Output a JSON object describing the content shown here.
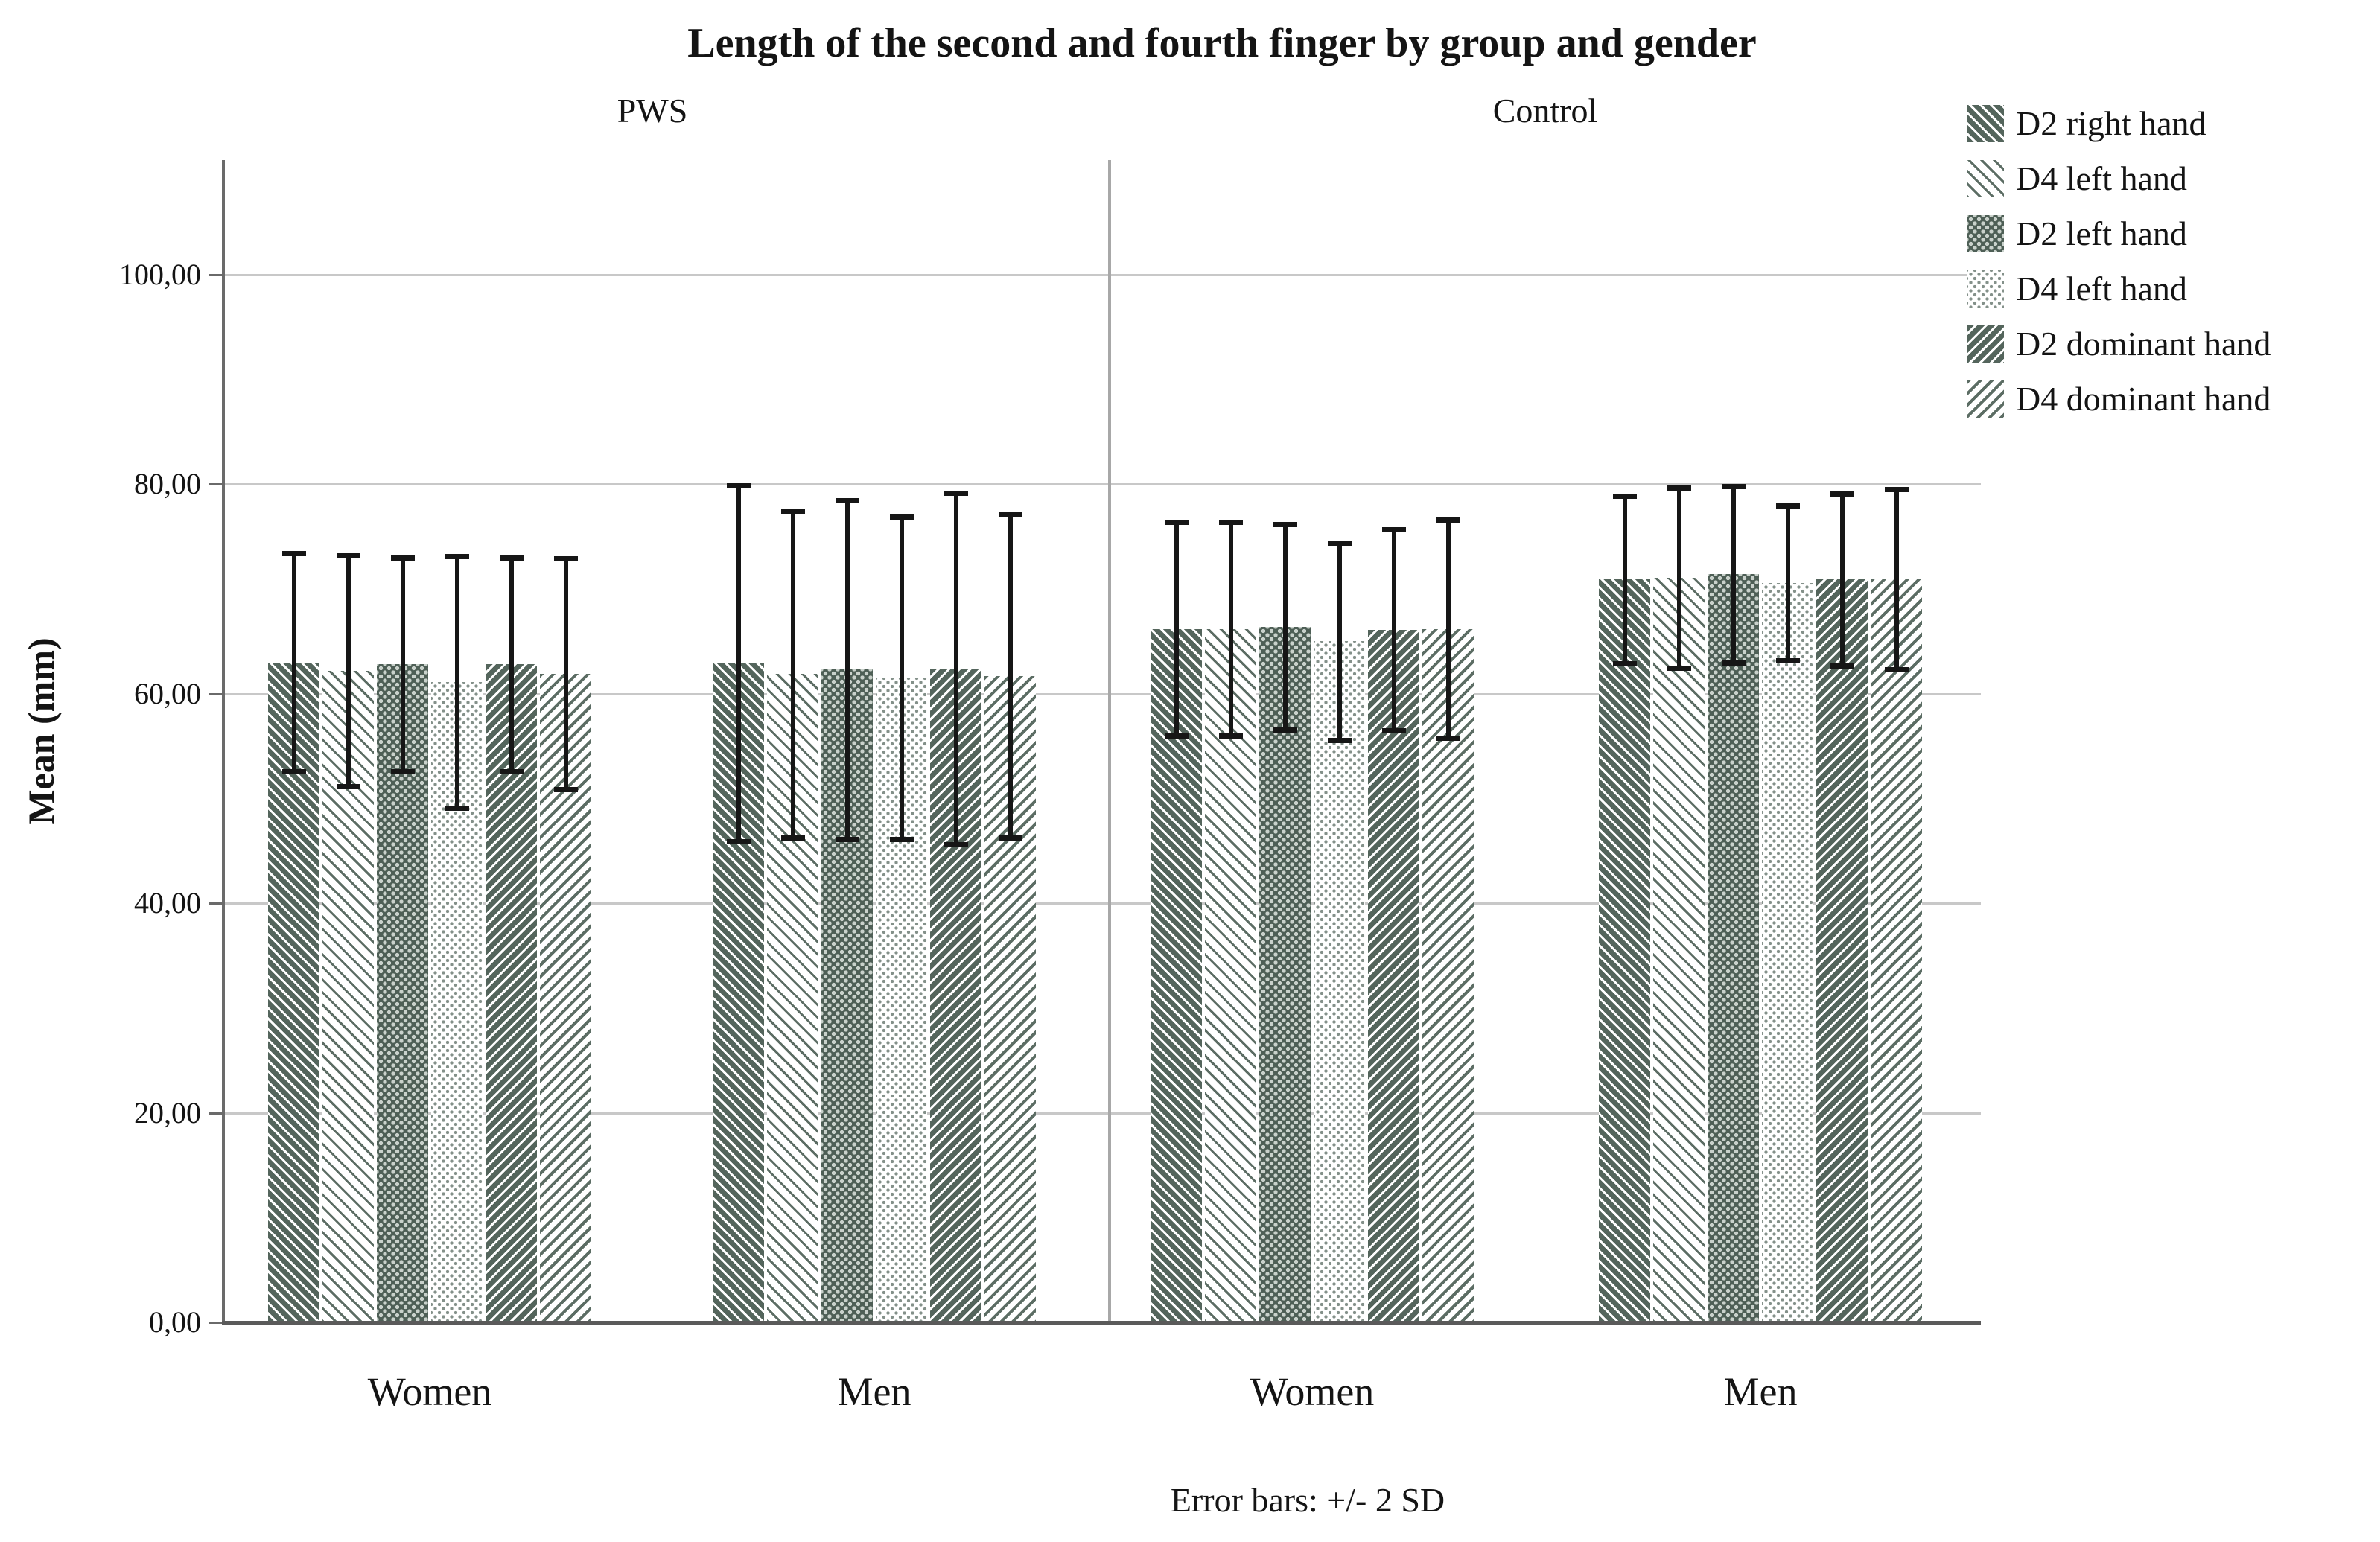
{
  "chart_data": {
    "type": "bar",
    "title": "Length of the second and fourth finger by group and gender",
    "panel_labels": [
      "PWS",
      "Control"
    ],
    "ylabel": "Mean (mm)",
    "xlabel": "",
    "ylim": [
      0,
      111
    ],
    "grid": "horizontal",
    "legend_position": "top-right",
    "yticks": [
      {
        "label": "0,00",
        "value": 0
      },
      {
        "label": "20,00",
        "value": 20
      },
      {
        "label": "40,00",
        "value": 40
      },
      {
        "label": "60,00",
        "value": 60
      },
      {
        "label": "80,00",
        "value": 80
      },
      {
        "label": "100,00",
        "value": 100
      }
    ],
    "series": [
      {
        "name": "D2 right hand",
        "pattern": "dense-backslash-hatch"
      },
      {
        "name": "D4 left hand",
        "pattern": "thin-backslash-hatch"
      },
      {
        "name": "D2 left hand",
        "pattern": "dense-dot-checker"
      },
      {
        "name": "D4 left hand",
        "pattern": "light-dots"
      },
      {
        "name": "D2 dominant hand",
        "pattern": "dense-forwardslash-hatch"
      },
      {
        "name": "D4 dominant hand",
        "pattern": "thin-forwardslash-hatch"
      }
    ],
    "groups": [
      {
        "panel": "PWS",
        "label": "Women",
        "means": [
          63.0,
          62.2,
          62.8,
          61.1,
          62.8,
          61.9
        ],
        "sd": [
          5.2,
          5.5,
          5.1,
          6.0,
          5.1,
          5.5
        ]
      },
      {
        "panel": "PWS",
        "label": "Men",
        "means": [
          62.9,
          61.9,
          62.3,
          61.5,
          62.4,
          61.7
        ],
        "sd": [
          8.5,
          7.8,
          8.1,
          7.7,
          8.4,
          7.7
        ]
      },
      {
        "panel": "Control",
        "label": "Women",
        "means": [
          66.2,
          66.2,
          66.4,
          65.0,
          66.1,
          66.2
        ],
        "sd": [
          5.1,
          5.1,
          4.9,
          4.7,
          4.8,
          5.2
        ]
      },
      {
        "panel": "Control",
        "label": "Men",
        "means": [
          70.9,
          71.1,
          71.4,
          70.6,
          70.9,
          70.9
        ],
        "sd": [
          4.0,
          4.3,
          4.2,
          3.7,
          4.1,
          4.3
        ]
      }
    ],
    "error_bars": {
      "definition": "+/- 2 SD",
      "multiplier": 2
    },
    "footnote": "Error bars: +/- 2 SD",
    "colors": {
      "hatch_dark": "#54655c",
      "hatch_solid": "#4e5f56",
      "dot_light": "#c9d1cb",
      "dot_on_white": "#84918a",
      "gridline": "#c8c8c8",
      "axis": "#6a6a6a",
      "error_bar": "#161616",
      "text": "#141414"
    }
  }
}
